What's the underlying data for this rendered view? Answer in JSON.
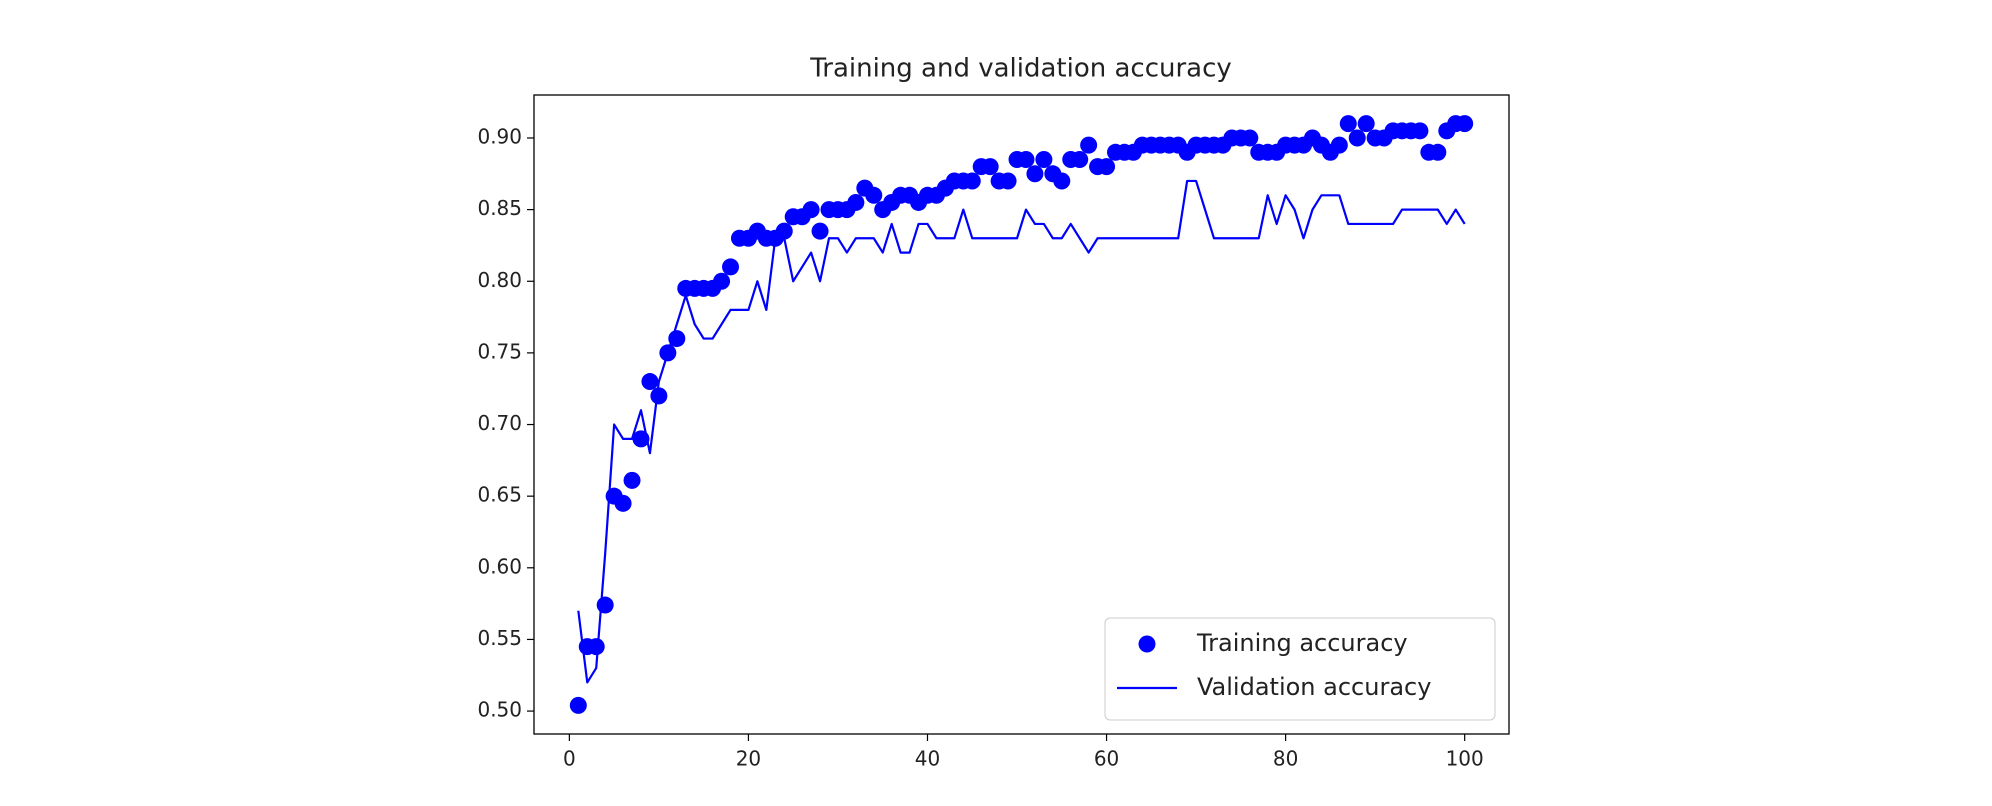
{
  "chart_data": {
    "type": "line",
    "title": "Training and validation accuracy",
    "x": [
      1,
      2,
      3,
      4,
      5,
      6,
      7,
      8,
      9,
      10,
      11,
      12,
      13,
      14,
      15,
      16,
      17,
      18,
      19,
      20,
      21,
      22,
      23,
      24,
      25,
      26,
      27,
      28,
      29,
      30,
      31,
      32,
      33,
      34,
      35,
      36,
      37,
      38,
      39,
      40,
      41,
      42,
      43,
      44,
      45,
      46,
      47,
      48,
      49,
      50,
      51,
      52,
      53,
      54,
      55,
      56,
      57,
      58,
      59,
      60,
      61,
      62,
      63,
      64,
      65,
      66,
      67,
      68,
      69,
      70,
      71,
      72,
      73,
      74,
      75,
      76,
      77,
      78,
      79,
      80,
      81,
      82,
      83,
      84,
      85,
      86,
      87,
      88,
      89,
      90,
      91,
      92,
      93,
      94,
      95,
      96,
      97,
      98,
      99,
      100
    ],
    "series": [
      {
        "name": "Training accuracy",
        "color": "#0000ff",
        "marker": "dot",
        "values": [
          0.504,
          0.545,
          0.545,
          0.574,
          0.65,
          0.645,
          0.661,
          0.69,
          0.73,
          0.72,
          0.75,
          0.76,
          0.795,
          0.795,
          0.795,
          0.795,
          0.8,
          0.81,
          0.83,
          0.83,
          0.835,
          0.83,
          0.83,
          0.835,
          0.845,
          0.845,
          0.85,
          0.835,
          0.85,
          0.85,
          0.85,
          0.855,
          0.865,
          0.86,
          0.85,
          0.855,
          0.86,
          0.86,
          0.855,
          0.86,
          0.86,
          0.865,
          0.87,
          0.87,
          0.87,
          0.88,
          0.88,
          0.87,
          0.87,
          0.885,
          0.885,
          0.875,
          0.885,
          0.875,
          0.87,
          0.885,
          0.885,
          0.895,
          0.88,
          0.88,
          0.89,
          0.89,
          0.89,
          0.895,
          0.895,
          0.895,
          0.895,
          0.895,
          0.89,
          0.895,
          0.895,
          0.895,
          0.895,
          0.9,
          0.9,
          0.9,
          0.89,
          0.89,
          0.89,
          0.895,
          0.895,
          0.895,
          0.9,
          0.895,
          0.89,
          0.895,
          0.91,
          0.9,
          0.91,
          0.9,
          0.9,
          0.905,
          0.905,
          0.905,
          0.905,
          0.89,
          0.89,
          0.905,
          0.91,
          0.91
        ]
      },
      {
        "name": "Validation accuracy",
        "color": "#0000ff",
        "marker": "line",
        "values": [
          0.57,
          0.52,
          0.53,
          0.61,
          0.7,
          0.69,
          0.69,
          0.71,
          0.68,
          0.73,
          0.75,
          0.77,
          0.79,
          0.77,
          0.76,
          0.76,
          0.77,
          0.78,
          0.78,
          0.78,
          0.8,
          0.78,
          0.83,
          0.83,
          0.8,
          0.81,
          0.82,
          0.8,
          0.83,
          0.83,
          0.82,
          0.83,
          0.83,
          0.83,
          0.82,
          0.84,
          0.82,
          0.82,
          0.84,
          0.84,
          0.83,
          0.83,
          0.83,
          0.85,
          0.83,
          0.83,
          0.83,
          0.83,
          0.83,
          0.83,
          0.85,
          0.84,
          0.84,
          0.83,
          0.83,
          0.84,
          0.83,
          0.82,
          0.83,
          0.83,
          0.83,
          0.83,
          0.83,
          0.83,
          0.83,
          0.83,
          0.83,
          0.83,
          0.87,
          0.87,
          0.85,
          0.83,
          0.83,
          0.83,
          0.83,
          0.83,
          0.83,
          0.86,
          0.84,
          0.86,
          0.85,
          0.83,
          0.85,
          0.86,
          0.86,
          0.86,
          0.84,
          0.84,
          0.84,
          0.84,
          0.84,
          0.84,
          0.85,
          0.85,
          0.85,
          0.85,
          0.85,
          0.84,
          0.85,
          0.84
        ]
      }
    ],
    "xlim": [
      -3.95,
      104.95
    ],
    "ylim": [
      0.484,
      0.93
    ],
    "xticks": [
      0,
      20,
      40,
      60,
      80,
      100
    ],
    "yticks": [
      {
        "value": 0.5,
        "label": "0.50"
      },
      {
        "value": 0.55,
        "label": "0.55"
      },
      {
        "value": 0.6,
        "label": "0.60"
      },
      {
        "value": 0.65,
        "label": "0.65"
      },
      {
        "value": 0.7,
        "label": "0.70"
      },
      {
        "value": 0.75,
        "label": "0.75"
      },
      {
        "value": 0.8,
        "label": "0.80"
      },
      {
        "value": 0.85,
        "label": "0.85"
      },
      {
        "value": 0.9,
        "label": "0.90"
      }
    ],
    "legend": "lower right",
    "grid": false
  }
}
